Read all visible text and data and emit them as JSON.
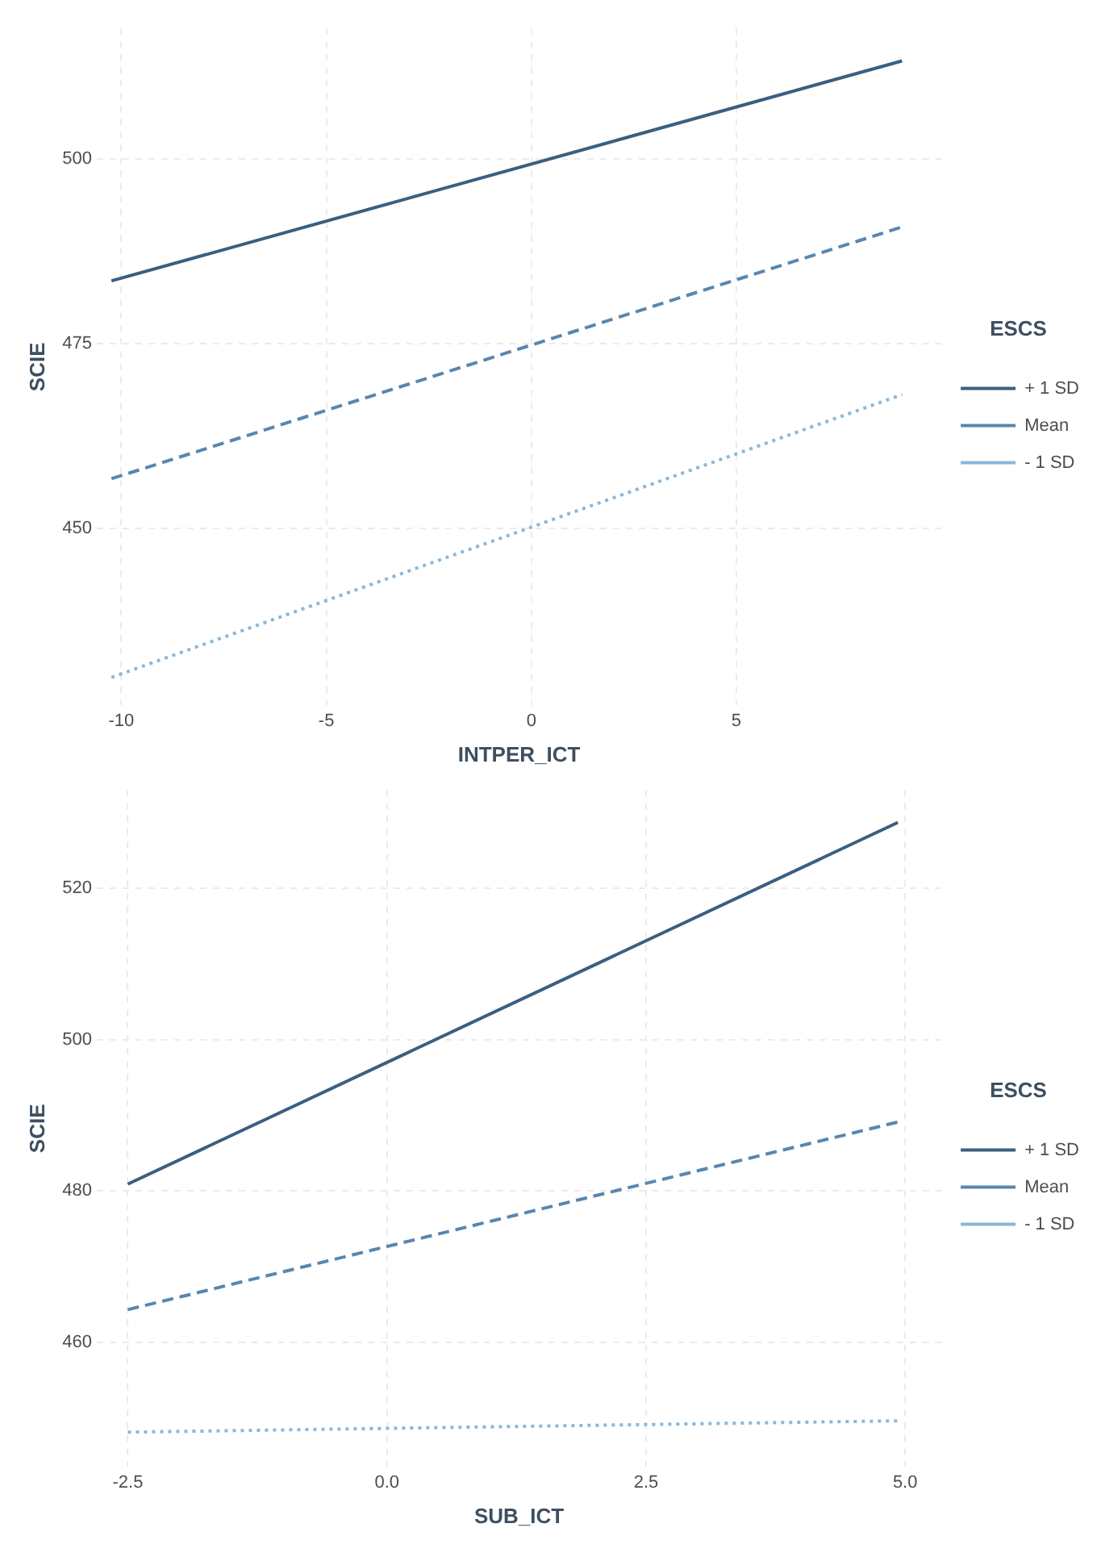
{
  "chart_data": [
    {
      "type": "line",
      "xlabel": "INTPER_ICT",
      "ylabel": "SCIE",
      "legend_title": "ESCS",
      "legend": "right",
      "grid": true,
      "xlim": [
        -10.6,
        10
      ],
      "ylim": [
        426,
        517.7
      ],
      "xticks": [
        -10,
        -5,
        0,
        5
      ],
      "yticks": [
        450,
        475,
        500
      ],
      "series": [
        {
          "name": "+ 1 SD",
          "color": "#3a5f80",
          "line_style": "solid",
          "x": [
            -10.24,
            9.04
          ],
          "values": [
            483.5,
            513.3
          ]
        },
        {
          "name": "Mean",
          "color": "#5a86ae",
          "line_style": "dashed",
          "x": [
            -10.24,
            9.04
          ],
          "values": [
            456.7,
            490.8
          ]
        },
        {
          "name": "- 1 SD",
          "color": "#8ab8d8",
          "line_style": "dotted",
          "x": [
            -10.24,
            9.04
          ],
          "values": [
            429.8,
            468.1
          ]
        }
      ]
    },
    {
      "type": "line",
      "xlabel": "SUB_ICT",
      "ylabel": "SCIE",
      "legend_title": "ESCS",
      "legend": "right",
      "grid": true,
      "xlim": [
        -2.8,
        5.35
      ],
      "ylim": [
        443.5,
        533
      ],
      "xticks": [
        -2.5,
        {
          "value": 0,
          "label": "0.0"
        },
        2.5,
        {
          "value": 5,
          "label": "5.0"
        }
      ],
      "yticks": [
        460,
        480,
        500,
        520
      ],
      "series": [
        {
          "name": "+ 1 SD",
          "color": "#3a5f80",
          "line_style": "solid",
          "x": [
            -2.5,
            4.93
          ],
          "values": [
            480.9,
            528.7
          ]
        },
        {
          "name": "Mean",
          "color": "#5a86ae",
          "line_style": "dashed",
          "x": [
            -2.5,
            4.93
          ],
          "values": [
            464.3,
            489.1
          ]
        },
        {
          "name": "- 1 SD",
          "color": "#8ab8d8",
          "line_style": "dotted",
          "x": [
            -2.5,
            4.93
          ],
          "values": [
            448.1,
            449.6
          ]
        }
      ]
    }
  ]
}
